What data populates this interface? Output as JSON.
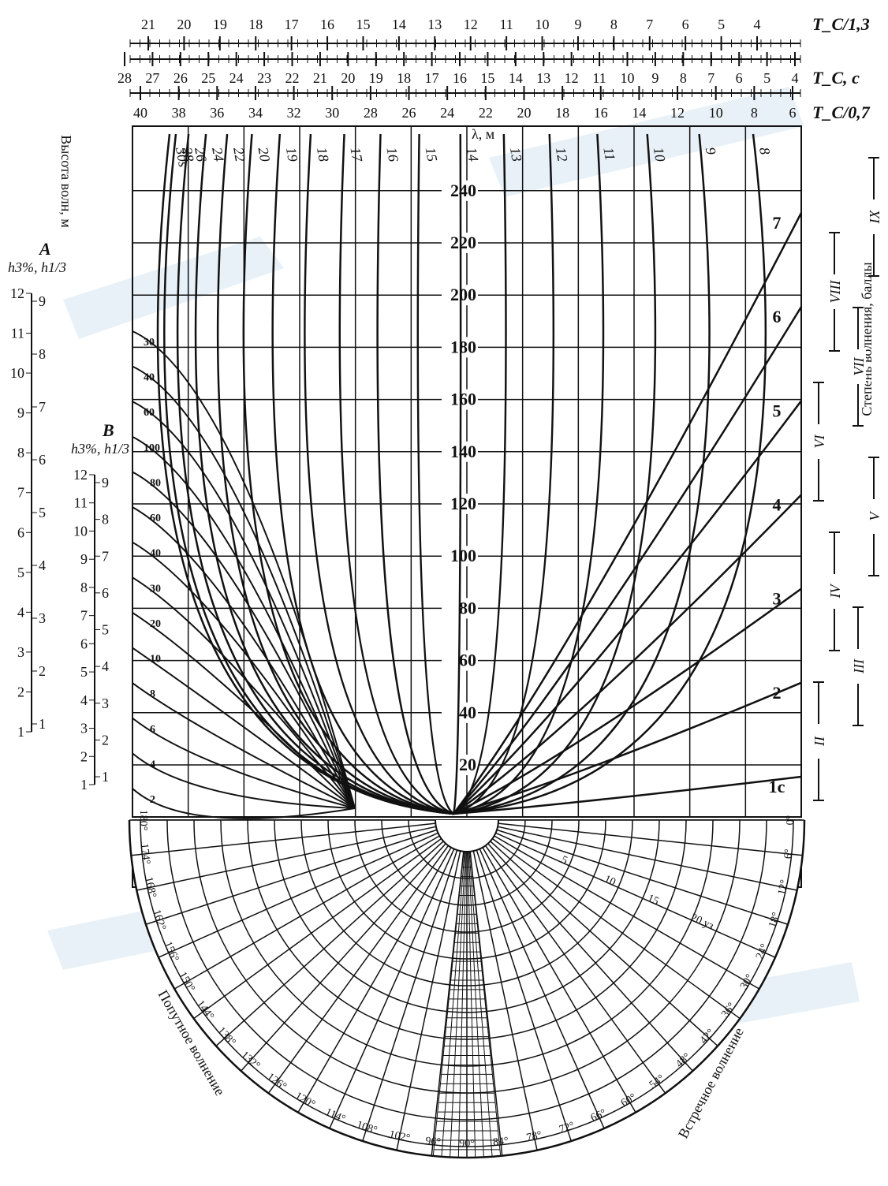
{
  "top_scales": [
    {
      "label": "T_C/1,3",
      "ticks": [
        21,
        20,
        19,
        18,
        17,
        16,
        15,
        14,
        13,
        12,
        11,
        10,
        9,
        8,
        7,
        6,
        5,
        4
      ]
    },
    {
      "label": "T_C, c",
      "ticks": [
        28,
        27,
        26,
        25,
        24,
        23,
        22,
        21,
        20,
        19,
        18,
        17,
        16,
        15,
        14,
        13,
        12,
        11,
        10,
        9,
        8,
        7,
        6,
        5,
        4
      ]
    },
    {
      "label": "T_C/0,7",
      "ticks": [
        40,
        38,
        36,
        34,
        32,
        30,
        28,
        26,
        24,
        22,
        20,
        18,
        16,
        14,
        12,
        10,
        8,
        6
      ]
    }
  ],
  "wavelength_ticks": [
    20,
    40,
    60,
    80,
    100,
    120,
    140,
    160,
    180,
    200,
    220,
    240
  ],
  "wavelength_unit": "λ, м",
  "top_curves": [
    "30s",
    "28",
    "26",
    "24",
    "22",
    "20",
    "19",
    "18",
    "17",
    "16",
    "15",
    "14",
    "13",
    "12",
    "11",
    "10",
    "9",
    "8"
  ],
  "right_curves": [
    "7",
    "6",
    "5",
    "4",
    "3",
    "2",
    "1c"
  ],
  "left_curves": [
    "30",
    "40",
    "60",
    "100",
    "80",
    "60",
    "40",
    "30",
    "20",
    "10",
    "8",
    "6",
    "4",
    "2"
  ],
  "height_title": "Высота волн, м",
  "scale_a": {
    "name": "A",
    "label": "h3%, h1/3",
    "left": [
      12,
      11,
      10,
      9,
      8,
      7,
      6,
      5,
      4,
      3,
      2,
      1
    ],
    "right": [
      9,
      8,
      7,
      6,
      5,
      4,
      3,
      2,
      1
    ]
  },
  "scale_b": {
    "name": "B",
    "label": "h3%, h1/3",
    "left": [
      12,
      11,
      10,
      9,
      8,
      7,
      6,
      5,
      4,
      3,
      2,
      1
    ],
    "right": [
      9,
      8,
      7,
      6,
      5,
      4,
      3,
      2,
      1
    ]
  },
  "sea_state": {
    "title": "Степень волнения, баллы",
    "levels": [
      "II",
      "III",
      "IV",
      "V",
      "VI",
      "VII",
      "VIII",
      "IX"
    ]
  },
  "polar": {
    "angles": [
      "0°",
      "6°",
      "12°",
      "18°",
      "24°",
      "30°",
      "36°",
      "42°",
      "48°",
      "54°",
      "60°",
      "66°",
      "72°",
      "78°",
      "84°",
      "90°",
      "96°",
      "102°",
      "108°",
      "114°",
      "120°",
      "126°",
      "132°",
      "138°",
      "144°",
      "150°",
      "156°",
      "162°",
      "168°",
      "174°",
      "180°"
    ],
    "speed_ticks": [
      "5",
      "10",
      "15",
      "20 уз"
    ],
    "following_label": "Попутное волнение",
    "head_label": "Встречное волнение"
  }
}
